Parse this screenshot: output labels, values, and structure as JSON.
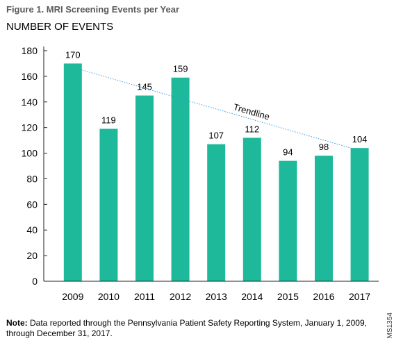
{
  "figure_title": "Figure 1. MRI Screening Events per Year",
  "chart_data": {
    "type": "bar",
    "title": "Figure 1. MRI Screening Events per Year",
    "ylabel": "NUMBER OF EVENTS",
    "xlabel": "",
    "categories": [
      "2009",
      "2010",
      "2011",
      "2012",
      "2013",
      "2014",
      "2015",
      "2016",
      "2017"
    ],
    "values": [
      170,
      119,
      145,
      159,
      107,
      112,
      94,
      98,
      104
    ],
    "ylim": [
      0,
      180
    ],
    "yticks": [
      0,
      20,
      40,
      60,
      80,
      100,
      120,
      140,
      160,
      180
    ],
    "bar_color": "#1db99a",
    "trendline": {
      "label": "Trendline",
      "start": 167,
      "end": 102,
      "color": "#3a9ad9",
      "style": "dotted"
    },
    "grid": false,
    "legend": "none"
  },
  "note": {
    "label": "Note:",
    "text": " Data reported through the Pennsylvania Patient Safety Reporting System, January 1, 2009, through December 31, 2017."
  },
  "figure_code": "MS1354"
}
